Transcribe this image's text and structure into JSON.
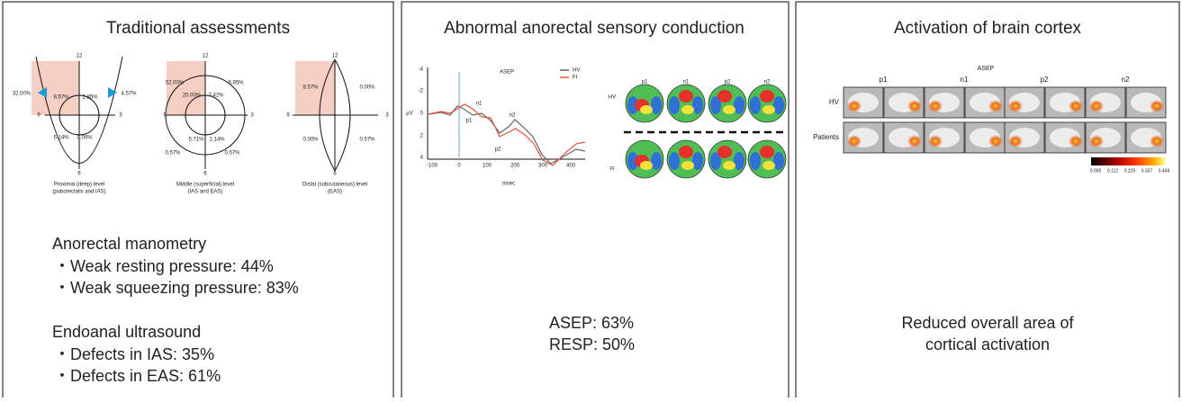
{
  "panels": [
    {
      "title": "Traditional assessments",
      "diagrams": [
        {
          "clock": [
            "12",
            "3",
            "6",
            "9"
          ],
          "labels": [
            "32.00%",
            "8.57%",
            "2.85%",
            "4.57%",
            "5.14%",
            "0.00%"
          ],
          "caption": [
            "Proximal (deep) level",
            "(puborectalis and IAS)"
          ]
        },
        {
          "clock": [
            "12",
            "3",
            "6",
            "9"
          ],
          "labels": [
            "52.00%",
            "20.00%",
            "7.42%",
            "6.85%",
            "5.71%",
            "1.14%",
            "0.57%",
            "0.57%"
          ],
          "caption": [
            "Middle (superficial) level",
            "(IAS and EAS)"
          ]
        },
        {
          "clock": [
            "12",
            "3",
            "6",
            "9"
          ],
          "labels": [
            "8.57%",
            "0.00%",
            "0.00%",
            "0.57%"
          ],
          "caption": [
            "Distal (subcutaneous) level",
            "(EAS)"
          ]
        }
      ],
      "sections": [
        {
          "heading": "Anorectal manometry",
          "items": [
            "・Weak resting pressure: 44%",
            "・Weak squeezing pressure: 83%"
          ]
        },
        {
          "heading": "Endoanal ultrasound",
          "items": [
            "・Defects in IAS: 35%",
            "・Defects in EAS: 61%"
          ]
        }
      ]
    },
    {
      "title": "Abnormal anorectal sensory conduction",
      "chart": {
        "title": "ASEP",
        "y_label": "μV",
        "x_label": "msec",
        "yticks": [
          "-4",
          "-2",
          "0",
          "2",
          "4"
        ],
        "xticks": [
          "-100",
          "0",
          "100",
          "200",
          "300",
          "400"
        ],
        "legend": [
          "HV",
          "FI"
        ],
        "peaks": [
          "p1",
          "n1",
          "p2",
          "n2"
        ]
      },
      "maps": {
        "columns": [
          "p1",
          "n1",
          "p2",
          "n2"
        ],
        "rows": [
          "HV",
          "FI"
        ]
      },
      "results": [
        "ASEP: 63%",
        "RESP: 50%"
      ]
    },
    {
      "title": "Activation of brain cortex",
      "grid": {
        "title": "ASEP",
        "columns": [
          "p1",
          "n1",
          "p2",
          "n2"
        ],
        "rows": [
          "HV",
          "Patients"
        ]
      },
      "colorbar": [
        "0.000",
        "0.112",
        "0.225",
        "0.337",
        "0.449"
      ],
      "summary": [
        "Reduced overall area of",
        "cortical activation"
      ]
    }
  ]
}
